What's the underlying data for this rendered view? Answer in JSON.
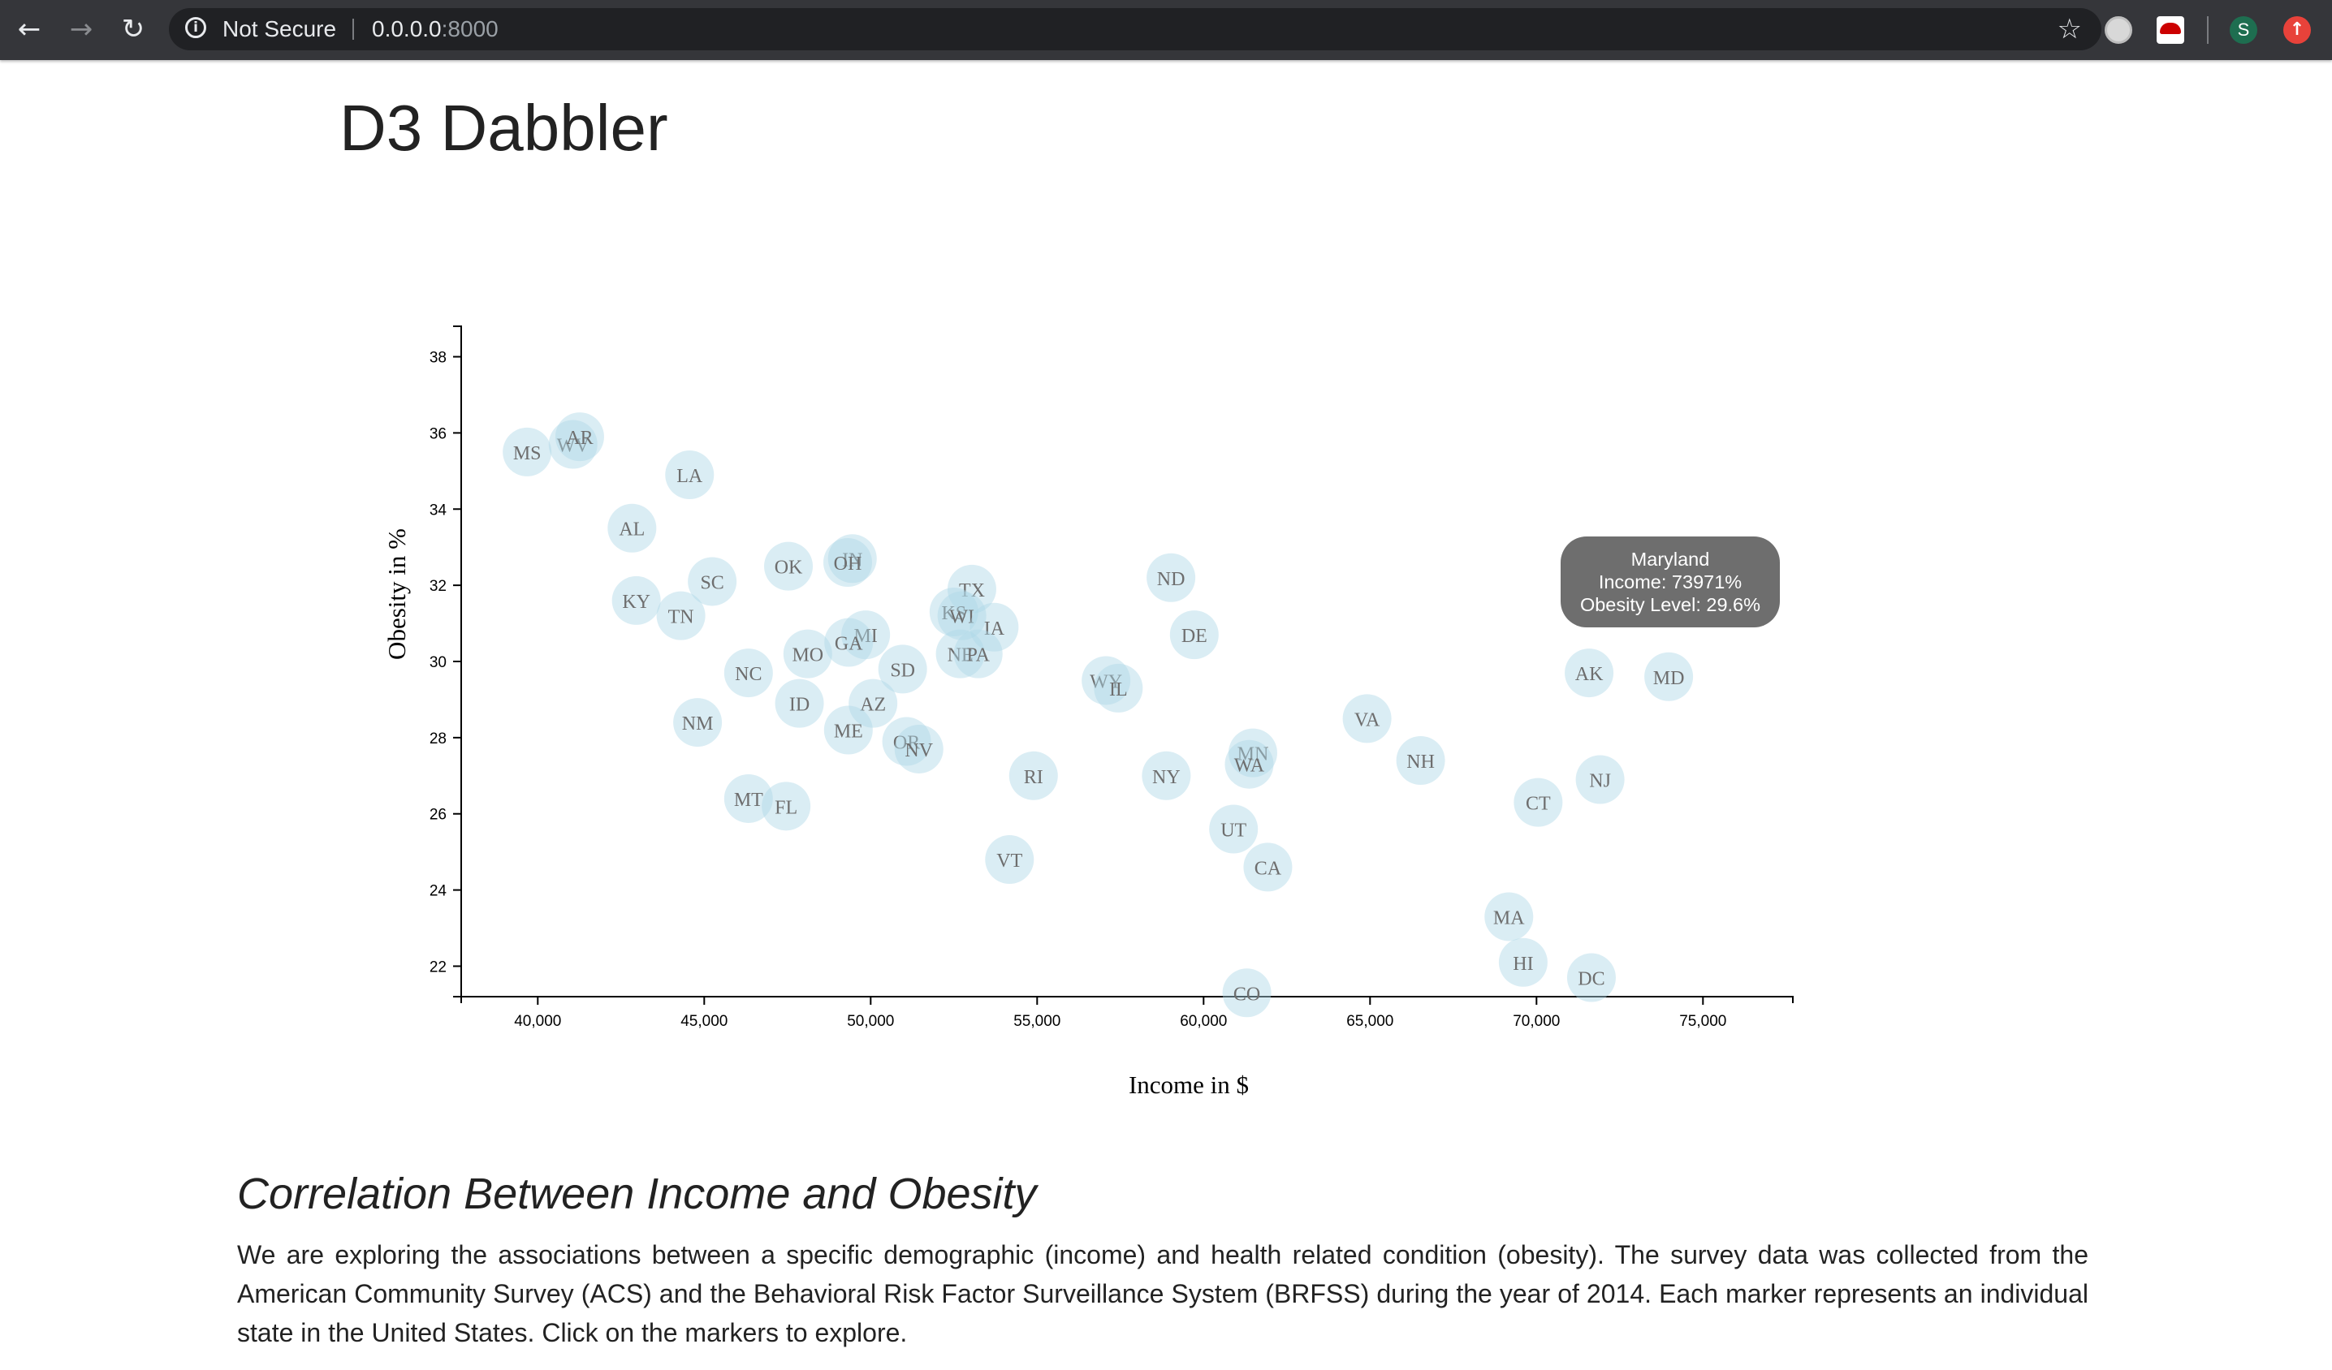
{
  "browser": {
    "security_label": "Not Secure",
    "url_host": "0.0.0.0",
    "url_port": ":8000",
    "avatar_letter": "S"
  },
  "page": {
    "title": "D3 Dabbler",
    "section_heading": "Correlation Between Income and Obesity",
    "description": "We are exploring the associations between a specific demographic (income) and health related condition (obesity). The survey data was collected from the American Community Survey (ACS) and the Behavioral Risk Factor Surveillance System (BRFSS) during the year of 2014. Each marker represents an individual state in the United States. Click on the markers to explore."
  },
  "tooltip": {
    "state": "Maryland",
    "income_line": "Income: 73971%",
    "obesity_line": "Obesity Level: 29.6%"
  },
  "chart_data": {
    "type": "scatter",
    "xlabel": "Income in $",
    "ylabel": "Obesity in %",
    "xlim": [
      37700,
      77700
    ],
    "ylim": [
      21.2,
      38.8
    ],
    "x_ticks": [
      "40,000",
      "45,000",
      "50,000",
      "55,000",
      "60,000",
      "65,000",
      "70,000",
      "75,000"
    ],
    "x_tick_values": [
      40000,
      45000,
      50000,
      55000,
      60000,
      65000,
      70000,
      75000
    ],
    "y_ticks": [
      "22",
      "24",
      "26",
      "28",
      "30",
      "32",
      "34",
      "36",
      "38"
    ],
    "y_tick_values": [
      22,
      24,
      26,
      28,
      30,
      32,
      34,
      36,
      38
    ],
    "marker_color": "#add8e6",
    "points": [
      {
        "abbr": "MS",
        "x": 39680,
        "y": 35.5
      },
      {
        "abbr": "WV",
        "x": 41060,
        "y": 35.7
      },
      {
        "abbr": "AR",
        "x": 41260,
        "y": 35.9
      },
      {
        "abbr": "LA",
        "x": 44560,
        "y": 34.9
      },
      {
        "abbr": "AL",
        "x": 42830,
        "y": 33.5
      },
      {
        "abbr": "OK",
        "x": 47530,
        "y": 32.5
      },
      {
        "abbr": "IN",
        "x": 49450,
        "y": 32.7
      },
      {
        "abbr": "OH",
        "x": 49310,
        "y": 32.6
      },
      {
        "abbr": "SC",
        "x": 45240,
        "y": 32.1
      },
      {
        "abbr": "KY",
        "x": 42960,
        "y": 31.6
      },
      {
        "abbr": "TN",
        "x": 44300,
        "y": 31.2
      },
      {
        "abbr": "TX",
        "x": 53040,
        "y": 31.9
      },
      {
        "abbr": "KS",
        "x": 52500,
        "y": 31.3
      },
      {
        "abbr": "WI",
        "x": 52740,
        "y": 31.2
      },
      {
        "abbr": "IA",
        "x": 53710,
        "y": 30.9
      },
      {
        "abbr": "MI",
        "x": 49850,
        "y": 30.7
      },
      {
        "abbr": "GA",
        "x": 49340,
        "y": 30.5
      },
      {
        "abbr": "MO",
        "x": 48110,
        "y": 30.2
      },
      {
        "abbr": "NE",
        "x": 52690,
        "y": 30.2
      },
      {
        "abbr": "PA",
        "x": 53230,
        "y": 30.2
      },
      {
        "abbr": "SD",
        "x": 50960,
        "y": 29.8
      },
      {
        "abbr": "NC",
        "x": 46330,
        "y": 29.7
      },
      {
        "abbr": "ND",
        "x": 59020,
        "y": 32.2
      },
      {
        "abbr": "DE",
        "x": 59720,
        "y": 30.7
      },
      {
        "abbr": "WY",
        "x": 57070,
        "y": 29.5
      },
      {
        "abbr": "IL",
        "x": 57440,
        "y": 29.3
      },
      {
        "abbr": "AK",
        "x": 71580,
        "y": 29.7
      },
      {
        "abbr": "MD",
        "x": 73971,
        "y": 29.6
      },
      {
        "abbr": "ID",
        "x": 47860,
        "y": 28.9
      },
      {
        "abbr": "AZ",
        "x": 50070,
        "y": 28.9
      },
      {
        "abbr": "NM",
        "x": 44800,
        "y": 28.4
      },
      {
        "abbr": "ME",
        "x": 49330,
        "y": 28.2
      },
      {
        "abbr": "OR",
        "x": 51080,
        "y": 27.9
      },
      {
        "abbr": "NV",
        "x": 51450,
        "y": 27.7
      },
      {
        "abbr": "VA",
        "x": 64910,
        "y": 28.5
      },
      {
        "abbr": "NH",
        "x": 66520,
        "y": 27.4
      },
      {
        "abbr": "MN",
        "x": 61480,
        "y": 27.6
      },
      {
        "abbr": "WA",
        "x": 61370,
        "y": 27.3
      },
      {
        "abbr": "RI",
        "x": 54890,
        "y": 27.0
      },
      {
        "abbr": "NY",
        "x": 58880,
        "y": 27.0
      },
      {
        "abbr": "NJ",
        "x": 71910,
        "y": 26.9
      },
      {
        "abbr": "CT",
        "x": 70050,
        "y": 26.3
      },
      {
        "abbr": "MT",
        "x": 46330,
        "y": 26.4
      },
      {
        "abbr": "FL",
        "x": 47460,
        "y": 26.2
      },
      {
        "abbr": "UT",
        "x": 60900,
        "y": 25.6
      },
      {
        "abbr": "CA",
        "x": 61930,
        "y": 24.6
      },
      {
        "abbr": "VT",
        "x": 54170,
        "y": 24.8
      },
      {
        "abbr": "MA",
        "x": 69170,
        "y": 23.3
      },
      {
        "abbr": "HI",
        "x": 69600,
        "y": 22.1
      },
      {
        "abbr": "DC",
        "x": 71650,
        "y": 21.7
      },
      {
        "abbr": "CO",
        "x": 61300,
        "y": 21.3
      }
    ]
  }
}
